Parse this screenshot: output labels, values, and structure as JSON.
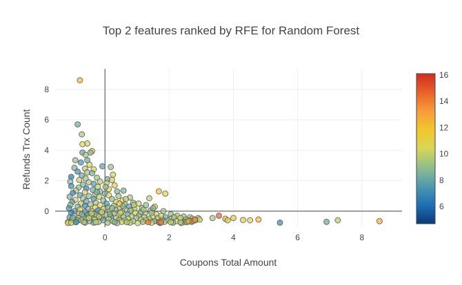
{
  "chart_data": {
    "type": "scatter",
    "title": "Top 2 features ranked by RFE for Random Forest",
    "xlabel": "Coupons Total Amount",
    "ylabel": "Refunds Trx Count",
    "xlim": [
      -1.55,
      9.25
    ],
    "ylim": [
      -1.05,
      9.35
    ],
    "xticks": [
      "0",
      "2",
      "4",
      "6",
      "8"
    ],
    "xtick_values": [
      0,
      2,
      4,
      6,
      8
    ],
    "yticks": [
      "0",
      "2",
      "4",
      "6",
      "8"
    ],
    "ytick_values": [
      0,
      2,
      4,
      6,
      8
    ],
    "grid": true,
    "zero_lines": true,
    "marker": {
      "opacity": 0.7,
      "outline": "#555555"
    },
    "colorbar": {
      "min": 4.7,
      "max": 16.1,
      "ticks": [
        "6",
        "8",
        "10",
        "12",
        "14",
        "16"
      ],
      "tick_values": [
        6,
        8,
        10,
        12,
        14,
        16
      ],
      "colorscale": [
        "#0a3a7a",
        "#1e6fb3",
        "#4e99b0",
        "#8fbd8e",
        "#d6d657",
        "#f2c72d",
        "#f59d3a",
        "#e8622a",
        "#d22c20"
      ]
    },
    "points": [
      [
        -0.78,
        8.6,
        12.2
      ],
      [
        -0.85,
        5.7,
        8.2
      ],
      [
        -0.72,
        5.05,
        9.5
      ],
      [
        -0.55,
        4.45,
        10.3
      ],
      [
        -0.7,
        4.4,
        10.6
      ],
      [
        -0.4,
        3.95,
        11.3
      ],
      [
        -0.45,
        3.85,
        8.8
      ],
      [
        -0.7,
        3.85,
        8.0
      ],
      [
        -0.6,
        3.7,
        9.4
      ],
      [
        -0.92,
        3.35,
        9.1
      ],
      [
        -0.55,
        3.35,
        8.2
      ],
      [
        -0.75,
        3.2,
        7.4
      ],
      [
        -0.48,
        3.05,
        10.4
      ],
      [
        -0.08,
        2.95,
        7.8
      ],
      [
        0.18,
        2.9,
        9.2
      ],
      [
        -0.95,
        2.85,
        8.6
      ],
      [
        -0.62,
        2.8,
        9.8
      ],
      [
        -0.35,
        2.75,
        10.9
      ],
      [
        -0.85,
        2.6,
        7.2
      ],
      [
        -0.55,
        2.55,
        9.5
      ],
      [
        0.25,
        2.4,
        10.2
      ],
      [
        -0.72,
        2.35,
        8.1
      ],
      [
        -1.05,
        2.25,
        6.4
      ],
      [
        -0.25,
        2.2,
        9.2
      ],
      [
        0.08,
        2.1,
        8.3
      ],
      [
        -0.8,
        2.05,
        10.1
      ],
      [
        -1.08,
        1.95,
        8.9
      ],
      [
        -0.5,
        1.9,
        9.6
      ],
      [
        0.05,
        1.85,
        10.0
      ],
      [
        -0.35,
        1.8,
        7.6
      ],
      [
        -0.68,
        1.75,
        8.6
      ],
      [
        0.3,
        1.7,
        11.0
      ],
      [
        -1.05,
        1.65,
        7.0
      ],
      [
        -0.22,
        1.6,
        9.9
      ],
      [
        -0.82,
        1.55,
        9.0
      ],
      [
        -0.58,
        1.5,
        6.8
      ],
      [
        0.12,
        1.45,
        10.7
      ],
      [
        -0.38,
        1.4,
        8.3
      ],
      [
        -0.9,
        1.35,
        9.7
      ],
      [
        -0.15,
        1.3,
        8.7
      ],
      [
        0.58,
        1.35,
        8.5
      ],
      [
        1.68,
        1.3,
        11.9
      ],
      [
        1.88,
        1.15,
        11.0
      ],
      [
        -0.62,
        1.25,
        10.2
      ],
      [
        -1.0,
        1.2,
        6.7
      ],
      [
        0.0,
        1.15,
        8.3
      ],
      [
        -0.3,
        1.1,
        9.3
      ],
      [
        0.12,
        1.05,
        10.5
      ],
      [
        -0.78,
        1.05,
        7.8
      ],
      [
        -0.5,
        1.0,
        8.9
      ],
      [
        0.42,
        1.0,
        9.4
      ],
      [
        -1.1,
        0.95,
        8.4
      ],
      [
        -0.18,
        0.95,
        10.1
      ],
      [
        0.78,
        0.9,
        9.7
      ],
      [
        1.38,
        0.85,
        9.9
      ],
      [
        -0.68,
        0.85,
        9.3
      ],
      [
        -0.35,
        0.8,
        7.4
      ],
      [
        0.22,
        0.8,
        8.8
      ],
      [
        -0.92,
        0.75,
        10.6
      ],
      [
        0.55,
        0.7,
        10.8
      ],
      [
        -0.05,
        0.7,
        9.0
      ],
      [
        -0.58,
        0.65,
        8.0
      ],
      [
        0.35,
        0.6,
        11.1
      ],
      [
        -1.02,
        0.6,
        7.6
      ],
      [
        -0.28,
        0.55,
        9.6
      ],
      [
        0.88,
        0.55,
        8.7
      ],
      [
        -0.75,
        0.5,
        10.0
      ],
      [
        0.05,
        0.5,
        7.7
      ],
      [
        1.05,
        0.5,
        10.2
      ],
      [
        -0.45,
        0.45,
        9.2
      ],
      [
        0.62,
        0.45,
        9.4
      ],
      [
        -1.08,
        0.4,
        9.0
      ],
      [
        -0.15,
        0.4,
        10.4
      ],
      [
        1.28,
        0.4,
        8.9
      ],
      [
        -0.62,
        0.35,
        7.0
      ],
      [
        0.28,
        0.35,
        9.1
      ],
      [
        1.55,
        0.3,
        10.6
      ],
      [
        -0.85,
        0.3,
        8.5
      ],
      [
        0.75,
        0.3,
        7.9
      ],
      [
        -0.3,
        0.25,
        10.8
      ],
      [
        0.1,
        0.25,
        8.4
      ],
      [
        -1.12,
        0.2,
        7.3
      ],
      [
        0.48,
        0.2,
        9.8
      ],
      [
        1.15,
        0.2,
        9.5
      ],
      [
        -0.52,
        0.15,
        8.8
      ],
      [
        -0.05,
        0.15,
        9.7
      ],
      [
        0.92,
        0.15,
        10.1
      ],
      [
        -0.78,
        0.1,
        10.5
      ],
      [
        0.32,
        0.1,
        8.6
      ],
      [
        -0.22,
        0.05,
        7.5
      ],
      [
        0.68,
        0.05,
        9.2
      ],
      [
        1.42,
        0.05,
        8.9
      ],
      [
        -0.95,
        0.0,
        7.9
      ],
      [
        -0.42,
        0.0,
        9.4
      ],
      [
        0.15,
        0.0,
        10.3
      ],
      [
        1.82,
        0.0,
        9.3
      ],
      [
        -0.62,
        -0.05,
        8.1
      ],
      [
        0.52,
        -0.05,
        9.9
      ],
      [
        -1.05,
        -0.1,
        6.6
      ],
      [
        -0.15,
        -0.1,
        8.7
      ],
      [
        0.95,
        -0.1,
        10.7
      ],
      [
        -0.8,
        -0.15,
        9.6
      ],
      [
        0.28,
        -0.15,
        9.0
      ],
      [
        1.25,
        -0.15,
        9.4
      ],
      [
        -0.35,
        -0.2,
        10.2
      ],
      [
        0.72,
        -0.2,
        8.6
      ],
      [
        -0.55,
        -0.25,
        7.3
      ],
      [
        0.05,
        -0.25,
        9.8
      ],
      [
        1.6,
        -0.2,
        10.1
      ],
      [
        2.05,
        -0.2,
        9.0
      ],
      [
        -0.95,
        -0.3,
        8.7
      ],
      [
        -0.25,
        -0.3,
        9.2
      ],
      [
        0.42,
        -0.3,
        10.6
      ],
      [
        1.05,
        -0.3,
        8.9
      ],
      [
        2.25,
        -0.3,
        9.6
      ],
      [
        -0.68,
        -0.35,
        10.0
      ],
      [
        0.18,
        -0.35,
        7.8
      ],
      [
        0.82,
        -0.35,
        9.5
      ],
      [
        1.48,
        -0.35,
        10.4
      ],
      [
        2.45,
        -0.35,
        9.1
      ],
      [
        -1.1,
        -0.4,
        7.6
      ],
      [
        -0.45,
        -0.4,
        9.4
      ],
      [
        0.58,
        -0.4,
        9.0
      ],
      [
        1.22,
        -0.4,
        10.0
      ],
      [
        1.88,
        -0.4,
        8.8
      ],
      [
        2.65,
        -0.4,
        9.7
      ],
      [
        -0.82,
        -0.45,
        9.9
      ],
      [
        -0.12,
        -0.45,
        8.5
      ],
      [
        0.35,
        -0.45,
        10.2
      ],
      [
        0.98,
        -0.45,
        9.3
      ],
      [
        1.65,
        -0.45,
        9.8
      ],
      [
        2.35,
        -0.45,
        10.8
      ],
      [
        2.9,
        -0.45,
        9.2
      ],
      [
        -0.58,
        -0.5,
        8.9
      ],
      [
        0.12,
        -0.5,
        9.6
      ],
      [
        0.72,
        -0.5,
        10.5
      ],
      [
        1.38,
        -0.5,
        9.0
      ],
      [
        2.05,
        -0.5,
        9.4
      ],
      [
        2.72,
        -0.5,
        10.1
      ],
      [
        -1.02,
        -0.55,
        7.1
      ],
      [
        -0.32,
        -0.55,
        9.3
      ],
      [
        0.45,
        -0.55,
        8.7
      ],
      [
        1.12,
        -0.55,
        9.9
      ],
      [
        1.78,
        -0.55,
        8.4
      ],
      [
        2.52,
        -0.55,
        9.5
      ],
      [
        -0.75,
        -0.6,
        10.4
      ],
      [
        -0.05,
        -0.6,
        8.2
      ],
      [
        0.62,
        -0.6,
        9.7
      ],
      [
        1.28,
        -0.6,
        10.6
      ],
      [
        1.95,
        -0.6,
        9.1
      ],
      [
        2.62,
        -0.6,
        8.9
      ],
      [
        -0.48,
        -0.65,
        9.0
      ],
      [
        0.25,
        -0.65,
        10.0
      ],
      [
        0.88,
        -0.65,
        9.4
      ],
      [
        1.55,
        -0.65,
        8.0
      ],
      [
        2.22,
        -0.65,
        10.3
      ],
      [
        -0.92,
        -0.7,
        8.6
      ],
      [
        -0.2,
        -0.7,
        9.5
      ],
      [
        0.52,
        -0.7,
        10.8
      ],
      [
        1.18,
        -0.7,
        9.2
      ],
      [
        1.85,
        -0.7,
        9.6
      ],
      [
        2.48,
        -0.7,
        8.3
      ],
      [
        -0.62,
        -0.75,
        10.2
      ],
      [
        0.08,
        -0.75,
        9.1
      ],
      [
        0.78,
        -0.75,
        9.9
      ],
      [
        1.45,
        -0.75,
        10.5
      ],
      [
        2.12,
        -0.75,
        8.8
      ],
      [
        -0.35,
        -0.75,
        7.8
      ],
      [
        0.38,
        -0.78,
        9.3
      ],
      [
        1.02,
        -0.78,
        10.1
      ],
      [
        1.72,
        -0.78,
        9.0
      ],
      [
        2.38,
        -0.78,
        9.7
      ],
      [
        -0.85,
        -0.6,
        8.0
      ],
      [
        -0.5,
        -0.45,
        10.7
      ],
      [
        -0.18,
        -0.35,
        9.7
      ],
      [
        0.15,
        -0.2,
        8.5
      ],
      [
        0.48,
        -0.1,
        10.3
      ],
      [
        0.8,
        0.05,
        9.2
      ],
      [
        1.12,
        -0.05,
        8.7
      ],
      [
        1.45,
        -0.1,
        9.5
      ],
      [
        1.75,
        -0.3,
        10.0
      ],
      [
        2.15,
        -0.4,
        9.3
      ],
      [
        -1.0,
        -0.45,
        9.2
      ],
      [
        -0.72,
        -0.2,
        8.3
      ],
      [
        -0.42,
        -0.15,
        9.9
      ],
      [
        -0.1,
        -0.05,
        10.6
      ],
      [
        0.22,
        0.2,
        9.4
      ],
      [
        0.55,
        0.35,
        8.9
      ],
      [
        0.9,
        0.4,
        10.0
      ],
      [
        1.2,
        0.1,
        9.6
      ],
      [
        1.5,
        0.2,
        8.6
      ],
      [
        0.65,
        0.8,
        9.8
      ],
      [
        -0.25,
        1.25,
        8.5
      ],
      [
        0.02,
        1.6,
        9.1
      ],
      [
        -0.6,
        2.15,
        9.3
      ],
      [
        -0.4,
        2.5,
        8.4
      ],
      [
        0.22,
        2.05,
        10.8
      ],
      [
        0.38,
        1.3,
        8.6
      ],
      [
        -0.15,
        1.95,
        9.9
      ],
      [
        0.45,
        0.5,
        11.3
      ],
      [
        -1.15,
        -0.72,
        9.8
      ],
      [
        -1.15,
        -0.78,
        10.9
      ],
      [
        -1.05,
        -0.75,
        10.3
      ],
      [
        -0.9,
        -0.72,
        7.4
      ],
      [
        -0.65,
        -0.72,
        9.0
      ],
      [
        -0.28,
        -0.72,
        10.4
      ],
      [
        0.3,
        -0.72,
        8.4
      ],
      [
        0.68,
        -0.72,
        9.6
      ],
      [
        1.35,
        -0.72,
        14.2
      ],
      [
        1.68,
        -0.72,
        14.6
      ],
      [
        1.75,
        -0.72,
        13.8
      ],
      [
        2.05,
        -0.72,
        10.2
      ],
      [
        2.35,
        -0.72,
        9.4
      ],
      [
        2.55,
        -0.72,
        9.2
      ],
      [
        2.7,
        -0.7,
        14.8
      ],
      [
        2.75,
        -0.62,
        9.5
      ],
      [
        2.82,
        -0.6,
        10.7
      ],
      [
        2.95,
        -0.55,
        10.2
      ],
      [
        2.8,
        -0.55,
        13.9
      ],
      [
        2.6,
        -0.65,
        12.9
      ],
      [
        3.35,
        -0.45,
        9.6
      ],
      [
        3.55,
        -0.3,
        14.7
      ],
      [
        3.75,
        -0.5,
        12.3
      ],
      [
        3.82,
        -0.6,
        10.9
      ],
      [
        4.0,
        -0.45,
        11.6
      ],
      [
        4.3,
        -0.58,
        10.8
      ],
      [
        4.52,
        -0.6,
        10.6
      ],
      [
        4.78,
        -0.55,
        12.1
      ],
      [
        5.45,
        -0.75,
        7.0
      ],
      [
        6.9,
        -0.7,
        8.1
      ],
      [
        7.25,
        -0.6,
        9.7
      ],
      [
        8.55,
        -0.65,
        12.6
      ]
    ]
  }
}
